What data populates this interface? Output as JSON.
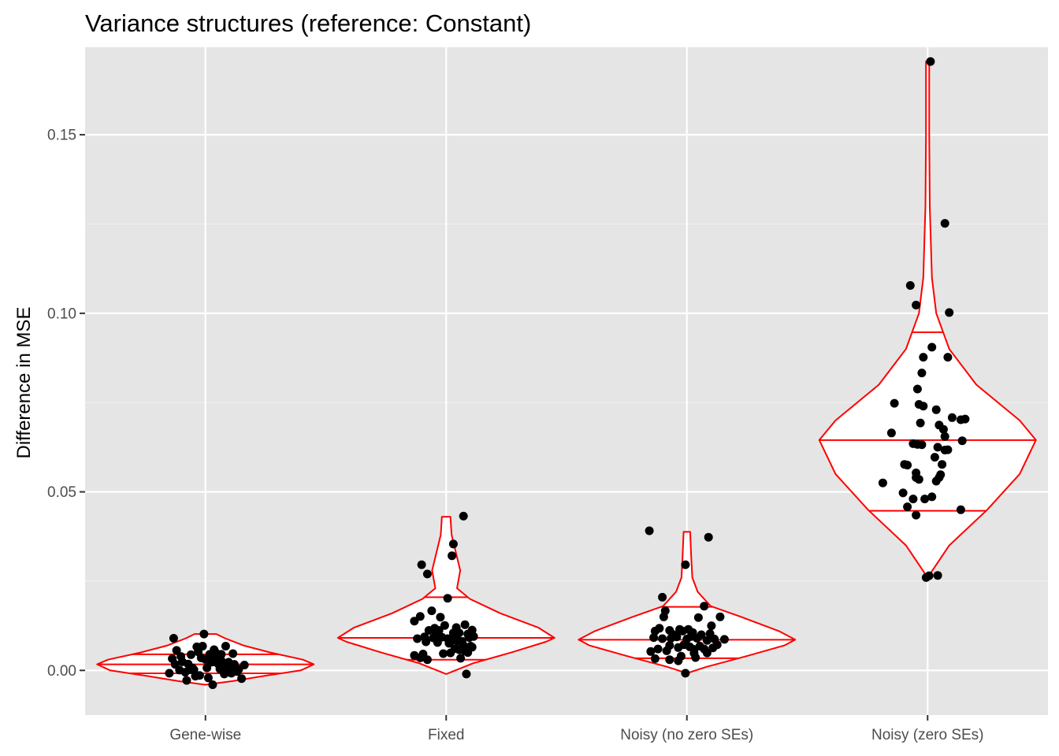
{
  "chart_data": {
    "type": "violin+jitter",
    "title": "Variance structures (reference: Constant)",
    "xlabel": "",
    "ylabel": "Difference in MSE",
    "ylim": [
      -0.0125,
      0.1745
    ],
    "yticks": [
      0.0,
      0.05,
      0.1,
      0.15
    ],
    "ytick_labels": [
      "0.00",
      "0.05",
      "0.10",
      "0.15"
    ],
    "grid": true,
    "background": "#e5e5e5",
    "violin_color": "#ff0000",
    "point_color": "#000000",
    "categories": [
      "Gene-wise",
      "Fixed",
      "Noisy (no zero SEs)",
      "Noisy (zero SEs)"
    ],
    "groups": [
      {
        "category": "Gene-wise",
        "quantiles": {
          "q25": -0.0008,
          "median": 0.0017,
          "q75": 0.0045
        },
        "violin_profile": [
          [
            -0.004,
            0.0
          ],
          [
            -0.003,
            0.25
          ],
          [
            -0.0015,
            0.55
          ],
          [
            0.0,
            0.88
          ],
          [
            0.0017,
            1.0
          ],
          [
            0.003,
            0.9
          ],
          [
            0.005,
            0.6
          ],
          [
            0.007,
            0.35
          ],
          [
            0.009,
            0.18
          ],
          [
            0.0102,
            0.1
          ]
        ],
        "points": [
          [
            -0.23,
            0.0033
          ],
          [
            -0.2,
            0.0056
          ],
          [
            -0.16,
            0.0024
          ],
          [
            -0.22,
            0.009
          ],
          [
            -0.25,
            -0.0008
          ],
          [
            -0.18,
            0.0001
          ],
          [
            -0.14,
            -0.0005
          ],
          [
            -0.13,
            -0.0028
          ],
          [
            -0.1,
            0.0044
          ],
          [
            -0.06,
            0.0066
          ],
          [
            -0.03,
            0.0035
          ],
          [
            0.0,
            0.0031
          ],
          [
            0.03,
            0.0045
          ],
          [
            0.06,
            0.0058
          ],
          [
            0.08,
            0.0039
          ],
          [
            0.11,
            0.0027
          ],
          [
            0.14,
            0.0068
          ],
          [
            0.17,
            0.0009
          ],
          [
            0.2,
            0.0017
          ],
          [
            0.22,
            -0.0003
          ],
          [
            0.25,
            -0.0023
          ],
          [
            0.27,
            0.0015
          ],
          [
            -0.12,
            0.0018
          ],
          [
            -0.08,
            0.0002
          ],
          [
            -0.05,
            0.0052
          ],
          [
            -0.02,
            0.0068
          ],
          [
            0.01,
            0.0007
          ],
          [
            0.04,
            0.0023
          ],
          [
            0.07,
            0.005
          ],
          [
            0.1,
            0.0004
          ],
          [
            0.13,
            -0.001
          ],
          [
            0.16,
            0.0023
          ],
          [
            0.19,
            0.0047
          ],
          [
            -0.17,
            0.0039
          ],
          [
            -0.09,
            0.0007
          ],
          [
            -0.04,
            -0.0014
          ],
          [
            0.02,
            -0.0021
          ],
          [
            0.05,
            -0.004
          ],
          [
            0.09,
            0.0018
          ],
          [
            0.12,
            0.0008
          ],
          [
            0.15,
            -0.0005
          ],
          [
            0.18,
            -0.0008
          ],
          [
            0.23,
            0.0003
          ],
          [
            -0.01,
            0.0102
          ],
          [
            -0.21,
            0.0017
          ],
          [
            -0.11,
            0.0002
          ],
          [
            -0.07,
            -0.0016
          ],
          [
            0.03,
            0.0032
          ],
          [
            0.11,
            0.0045
          ],
          [
            0.06,
            0.0024
          ]
        ]
      },
      {
        "category": "Fixed",
        "quantiles": {
          "q25": 0.003,
          "median": 0.0091,
          "q75": 0.0205
        },
        "violin_profile": [
          [
            -0.001,
            0.0
          ],
          [
            0.002,
            0.25
          ],
          [
            0.005,
            0.6
          ],
          [
            0.008,
            0.92
          ],
          [
            0.0091,
            1.0
          ],
          [
            0.012,
            0.85
          ],
          [
            0.016,
            0.5
          ],
          [
            0.02,
            0.22
          ],
          [
            0.023,
            0.1
          ],
          [
            0.028,
            0.13
          ],
          [
            0.033,
            0.09
          ],
          [
            0.038,
            0.05
          ],
          [
            0.043,
            0.04
          ]
        ],
        "points": [
          [
            0.12,
            0.0432
          ],
          [
            0.05,
            0.0354
          ],
          [
            0.04,
            0.0321
          ],
          [
            -0.17,
            0.0296
          ],
          [
            -0.13,
            0.027
          ],
          [
            0.01,
            0.0202
          ],
          [
            -0.1,
            0.0167
          ],
          [
            -0.18,
            0.0151
          ],
          [
            -0.22,
            0.0138
          ],
          [
            -0.04,
            0.0149
          ],
          [
            -0.01,
            0.0126
          ],
          [
            -0.08,
            0.0118
          ],
          [
            -0.05,
            0.0112
          ],
          [
            -0.12,
            0.0112
          ],
          [
            0.09,
            0.0105
          ],
          [
            0.18,
            0.0113
          ],
          [
            0.13,
            0.0128
          ],
          [
            0.15,
            0.0102
          ],
          [
            0.05,
            0.0105
          ],
          [
            -0.15,
            0.0094
          ],
          [
            -0.09,
            0.0091
          ],
          [
            -0.03,
            0.0093
          ],
          [
            0.01,
            0.0089
          ],
          [
            0.04,
            0.0084
          ],
          [
            0.07,
            0.009
          ],
          [
            0.11,
            0.0081
          ],
          [
            0.16,
            0.0092
          ],
          [
            0.19,
            0.0095
          ],
          [
            -0.2,
            0.0089
          ],
          [
            -0.14,
            0.008
          ],
          [
            -0.06,
            0.0078
          ],
          [
            0.02,
            0.0076
          ],
          [
            0.08,
            0.0082
          ],
          [
            0.12,
            0.007
          ],
          [
            0.17,
            0.0068
          ],
          [
            0.06,
            0.0061
          ],
          [
            0.09,
            0.0058
          ],
          [
            0.13,
            0.0054
          ],
          [
            0.03,
            0.0049
          ],
          [
            -0.02,
            0.0047
          ],
          [
            -0.16,
            0.0046
          ],
          [
            -0.22,
            0.0042
          ],
          [
            -0.18,
            0.0035
          ],
          [
            -0.13,
            0.003
          ],
          [
            0.1,
            0.0034
          ],
          [
            0.15,
            0.005
          ],
          [
            0.18,
            0.0065
          ],
          [
            0.07,
            0.012
          ],
          [
            -0.07,
            0.01
          ],
          [
            0.14,
            -0.001
          ]
        ]
      },
      {
        "category": "Noisy (no zero SEs)",
        "quantiles": {
          "q25": 0.0034,
          "median": 0.0086,
          "q75": 0.0178
        },
        "violin_profile": [
          [
            -0.0008,
            0.0
          ],
          [
            0.001,
            0.18
          ],
          [
            0.004,
            0.55
          ],
          [
            0.007,
            0.9
          ],
          [
            0.0086,
            1.0
          ],
          [
            0.011,
            0.85
          ],
          [
            0.015,
            0.5
          ],
          [
            0.018,
            0.22
          ],
          [
            0.022,
            0.1
          ],
          [
            0.026,
            0.05
          ],
          [
            0.032,
            0.04
          ],
          [
            0.0388,
            0.03
          ]
        ],
        "points": [
          [
            -0.26,
            0.0391
          ],
          [
            0.15,
            0.0373
          ],
          [
            -0.01,
            0.0296
          ],
          [
            -0.17,
            0.0205
          ],
          [
            -0.15,
            0.0167
          ],
          [
            0.12,
            0.018
          ],
          [
            -0.16,
            0.015
          ],
          [
            0.08,
            0.0148
          ],
          [
            0.23,
            0.015
          ],
          [
            -0.22,
            0.011
          ],
          [
            -0.19,
            0.0118
          ],
          [
            -0.12,
            0.0112
          ],
          [
            -0.09,
            0.01
          ],
          [
            -0.05,
            0.0115
          ],
          [
            -0.03,
            0.011
          ],
          [
            0.01,
            0.0115
          ],
          [
            0.04,
            0.0106
          ],
          [
            0.1,
            0.01
          ],
          [
            0.16,
            0.0103
          ],
          [
            0.17,
            0.0125
          ],
          [
            -0.23,
            0.0092
          ],
          [
            -0.17,
            0.0089
          ],
          [
            -0.11,
            0.009
          ],
          [
            -0.07,
            0.0094
          ],
          [
            0.0,
            0.0088
          ],
          [
            0.03,
            0.0095
          ],
          [
            0.07,
            0.009
          ],
          [
            0.14,
            0.0084
          ],
          [
            0.19,
            0.0088
          ],
          [
            0.26,
            0.0087
          ],
          [
            -0.25,
            0.0053
          ],
          [
            -0.2,
            0.006
          ],
          [
            -0.14,
            0.0055
          ],
          [
            -0.12,
            0.007
          ],
          [
            -0.06,
            0.0064
          ],
          [
            -0.02,
            0.0072
          ],
          [
            0.02,
            0.0066
          ],
          [
            0.05,
            0.0059
          ],
          [
            0.09,
            0.0068
          ],
          [
            0.12,
            0.006
          ],
          [
            0.18,
            0.0063
          ],
          [
            0.21,
            0.0072
          ],
          [
            -0.22,
            0.0033
          ],
          [
            -0.12,
            0.003
          ],
          [
            -0.04,
            0.004
          ],
          [
            0.05,
            0.0048
          ],
          [
            0.14,
            0.0049
          ],
          [
            0.06,
            0.0036
          ],
          [
            -0.06,
            0.0027
          ],
          [
            -0.01,
            -0.0008
          ]
        ]
      },
      {
        "category": "Noisy (zero SEs)",
        "quantiles": {
          "q25": 0.0447,
          "median": 0.0645,
          "q75": 0.0947
        },
        "violin_profile": [
          [
            0.026,
            0.0
          ],
          [
            0.035,
            0.2
          ],
          [
            0.045,
            0.55
          ],
          [
            0.055,
            0.85
          ],
          [
            0.0645,
            1.0
          ],
          [
            0.07,
            0.85
          ],
          [
            0.08,
            0.45
          ],
          [
            0.09,
            0.2
          ],
          [
            0.1,
            0.08
          ],
          [
            0.11,
            0.04
          ],
          [
            0.13,
            0.02
          ],
          [
            0.15,
            0.015
          ],
          [
            0.1705,
            0.015
          ]
        ],
        "points": [
          [
            0.02,
            0.1705
          ],
          [
            0.12,
            0.1252
          ],
          [
            -0.12,
            0.1078
          ],
          [
            -0.08,
            0.1023
          ],
          [
            0.15,
            0.1002
          ],
          [
            0.03,
            0.0905
          ],
          [
            0.14,
            0.0877
          ],
          [
            -0.03,
            0.0877
          ],
          [
            -0.04,
            0.0833
          ],
          [
            -0.07,
            0.0788
          ],
          [
            -0.23,
            0.0748
          ],
          [
            -0.06,
            0.0745
          ],
          [
            -0.03,
            0.074
          ],
          [
            0.06,
            0.073
          ],
          [
            0.17,
            0.0708
          ],
          [
            0.26,
            0.0704
          ],
          [
            0.23,
            0.0702
          ],
          [
            -0.05,
            0.0693
          ],
          [
            0.08,
            0.0687
          ],
          [
            0.11,
            0.0675
          ],
          [
            -0.25,
            0.0665
          ],
          [
            0.12,
            0.0655
          ],
          [
            0.24,
            0.0643
          ],
          [
            -0.1,
            0.0635
          ],
          [
            -0.07,
            0.0633
          ],
          [
            -0.04,
            0.0632
          ],
          [
            0.07,
            0.0625
          ],
          [
            0.12,
            0.0617
          ],
          [
            0.14,
            0.0618
          ],
          [
            0.05,
            0.0597
          ],
          [
            -0.16,
            0.0577
          ],
          [
            -0.14,
            0.0575
          ],
          [
            0.1,
            0.0577
          ],
          [
            0.09,
            0.0548
          ],
          [
            -0.08,
            0.0553
          ],
          [
            -0.08,
            0.054
          ],
          [
            -0.06,
            0.0535
          ],
          [
            0.08,
            0.054
          ],
          [
            0.06,
            0.053
          ],
          [
            -0.31,
            0.0525
          ],
          [
            -0.17,
            0.0497
          ],
          [
            0.03,
            0.0486
          ],
          [
            -0.1,
            0.048
          ],
          [
            -0.02,
            0.048
          ],
          [
            -0.14,
            0.0458
          ],
          [
            0.23,
            0.045
          ],
          [
            -0.08,
            0.0435
          ],
          [
            0.01,
            0.0265
          ],
          [
            -0.01,
            0.026
          ],
          [
            0.07,
            0.0266
          ]
        ]
      }
    ]
  }
}
